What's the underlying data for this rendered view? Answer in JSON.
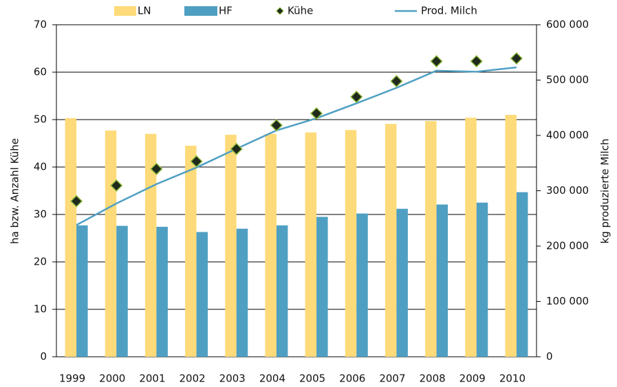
{
  "chart_data": {
    "type": "bar",
    "categories": [
      "1999",
      "2000",
      "2001",
      "2002",
      "2003",
      "2004",
      "2005",
      "2006",
      "2007",
      "2008",
      "2009",
      "2010"
    ],
    "series": [
      {
        "name": "LN",
        "type": "bar",
        "color": "#fddb7a",
        "values": [
          50.3,
          47.7,
          47.0,
          44.5,
          46.8,
          47.0,
          47.3,
          47.8,
          49.1,
          49.7,
          50.4,
          51.0
        ]
      },
      {
        "name": "HF",
        "type": "bar",
        "color": "#4f9fc3",
        "values": [
          27.7,
          27.6,
          27.4,
          26.3,
          27.0,
          27.7,
          29.5,
          30.2,
          31.2,
          32.1,
          32.5,
          34.7
        ]
      },
      {
        "name": "Kühe",
        "type": "scatter",
        "color": "#1f2a1c",
        "values": [
          32.8,
          36.1,
          39.6,
          41.2,
          43.8,
          48.8,
          51.3,
          54.8,
          58.1,
          62.3,
          62.3,
          62.9
        ]
      },
      {
        "name": "Prod. Milch",
        "type": "line",
        "axis": "y2",
        "color": "#4f9fc3",
        "values": [
          238000,
          277000,
          312000,
          342000,
          376000,
          409000,
          431000,
          458000,
          486000,
          517000,
          515000,
          523000
        ]
      }
    ],
    "ylabel": "ha bzw. Anzahl Kühe",
    "y2label": "kg produzierte Milch",
    "ylim": [
      0,
      70
    ],
    "yticks": [
      0,
      10,
      20,
      30,
      40,
      50,
      60,
      70
    ],
    "y2lim": [
      0,
      600000
    ],
    "y2ticks": [
      0,
      {
        "value": 100000,
        "label": "100 000"
      },
      {
        "value": 200000,
        "label": "200 000"
      },
      {
        "value": 300000,
        "label": "300 000"
      },
      {
        "value": 400000,
        "label": "400 000"
      },
      {
        "value": 500000,
        "label": "500 000"
      },
      {
        "value": 600000,
        "label": "600 000"
      }
    ],
    "grid": true,
    "legend": "top"
  }
}
